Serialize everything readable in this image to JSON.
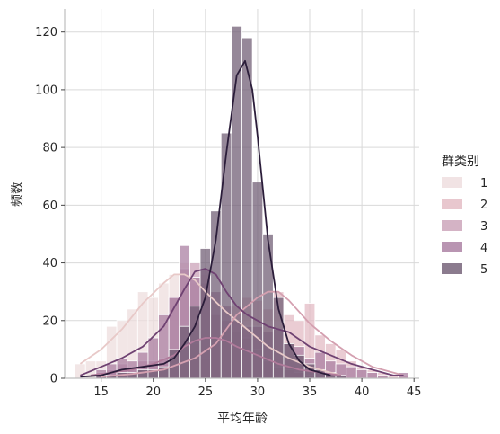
{
  "chart_data": {
    "type": "histogram",
    "xlabel": "平均年龄",
    "ylabel": "频数",
    "xlim": [
      11.5,
      45.5
    ],
    "ylim": [
      0,
      128
    ],
    "xticks": [
      15,
      20,
      25,
      30,
      35,
      40,
      45
    ],
    "yticks": [
      0,
      20,
      40,
      60,
      80,
      100,
      120
    ],
    "grid": true,
    "bin_width": 1,
    "legend": {
      "title": "群类别",
      "placement": "right"
    },
    "series": [
      {
        "name": "1",
        "color": "#eddcdd",
        "bins": [
          [
            13,
            5
          ],
          [
            14,
            6
          ],
          [
            15,
            6
          ],
          [
            16,
            18
          ],
          [
            17,
            20
          ],
          [
            18,
            24
          ],
          [
            19,
            30
          ],
          [
            20,
            28
          ],
          [
            21,
            33
          ],
          [
            22,
            36
          ],
          [
            23,
            40
          ],
          [
            24,
            33
          ],
          [
            25,
            36
          ],
          [
            26,
            22
          ],
          [
            27,
            18
          ],
          [
            28,
            20
          ],
          [
            29,
            15
          ],
          [
            30,
            18
          ],
          [
            31,
            12
          ],
          [
            32,
            7
          ],
          [
            33,
            6
          ],
          [
            34,
            5
          ],
          [
            35,
            3
          ],
          [
            36,
            2
          ],
          [
            37,
            2
          ],
          [
            38,
            1
          ]
        ],
        "kde": [
          [
            13,
            5
          ],
          [
            15,
            10
          ],
          [
            17,
            17
          ],
          [
            19,
            26
          ],
          [
            21,
            33
          ],
          [
            22,
            36
          ],
          [
            23,
            36
          ],
          [
            24,
            34
          ],
          [
            25,
            30
          ],
          [
            27,
            23
          ],
          [
            29,
            17
          ],
          [
            31,
            11
          ],
          [
            33,
            7
          ],
          [
            35,
            4
          ],
          [
            37,
            2
          ],
          [
            38,
            1
          ]
        ]
      },
      {
        "name": "2",
        "color": "#e2b9c2",
        "bins": [
          [
            15,
            1
          ],
          [
            16,
            2
          ],
          [
            17,
            3
          ],
          [
            18,
            2
          ],
          [
            19,
            2
          ],
          [
            20,
            3
          ],
          [
            21,
            5
          ],
          [
            22,
            8
          ],
          [
            23,
            5
          ],
          [
            24,
            12
          ],
          [
            25,
            7
          ],
          [
            26,
            14
          ],
          [
            27,
            18
          ],
          [
            28,
            25
          ],
          [
            29,
            28
          ],
          [
            30,
            27
          ],
          [
            31,
            24
          ],
          [
            32,
            30
          ],
          [
            33,
            22
          ],
          [
            34,
            20
          ],
          [
            35,
            26
          ],
          [
            36,
            15
          ],
          [
            37,
            12
          ],
          [
            38,
            10
          ],
          [
            39,
            6
          ],
          [
            40,
            4
          ],
          [
            41,
            3
          ],
          [
            42,
            2
          ],
          [
            43,
            1
          ],
          [
            44,
            1
          ]
        ],
        "kde": [
          [
            15,
            0.5
          ],
          [
            18,
            1.5
          ],
          [
            21,
            3
          ],
          [
            24,
            7
          ],
          [
            26,
            12
          ],
          [
            28,
            22
          ],
          [
            30,
            28
          ],
          [
            31,
            30
          ],
          [
            32,
            30
          ],
          [
            33,
            27
          ],
          [
            35,
            19
          ],
          [
            37,
            13
          ],
          [
            39,
            8
          ],
          [
            41,
            4
          ],
          [
            43,
            2
          ],
          [
            44,
            1
          ]
        ]
      },
      {
        "name": "3",
        "color": "#c9a0b6",
        "bins": [
          [
            15,
            2
          ],
          [
            16,
            3
          ],
          [
            17,
            5
          ],
          [
            18,
            4
          ],
          [
            19,
            6
          ],
          [
            20,
            6
          ],
          [
            21,
            7
          ],
          [
            22,
            28
          ],
          [
            23,
            38
          ],
          [
            24,
            40
          ],
          [
            25,
            33
          ],
          [
            26,
            22
          ],
          [
            27,
            20
          ],
          [
            28,
            16
          ],
          [
            29,
            14
          ],
          [
            30,
            10
          ],
          [
            31,
            6
          ],
          [
            32,
            4
          ],
          [
            33,
            3
          ],
          [
            34,
            2
          ],
          [
            35,
            1
          ]
        ],
        "kde": [
          [
            14,
            1
          ],
          [
            16,
            2
          ],
          [
            18,
            3
          ],
          [
            20,
            5
          ],
          [
            22,
            8
          ],
          [
            23,
            11
          ],
          [
            24,
            13
          ],
          [
            25,
            14
          ],
          [
            26,
            14
          ],
          [
            27,
            13
          ],
          [
            28,
            11
          ],
          [
            30,
            8
          ],
          [
            32,
            5
          ],
          [
            34,
            3
          ],
          [
            36,
            2
          ],
          [
            38,
            1
          ]
        ]
      },
      {
        "name": "4",
        "color": "#a87b9f",
        "bins": [
          [
            15,
            3
          ],
          [
            16,
            5
          ],
          [
            17,
            7
          ],
          [
            18,
            6
          ],
          [
            19,
            9
          ],
          [
            20,
            14
          ],
          [
            21,
            22
          ],
          [
            22,
            28
          ],
          [
            23,
            46
          ],
          [
            24,
            35
          ],
          [
            25,
            38
          ],
          [
            26,
            30
          ],
          [
            27,
            25
          ],
          [
            28,
            20
          ],
          [
            29,
            18
          ],
          [
            30,
            18
          ],
          [
            31,
            16
          ],
          [
            32,
            17
          ],
          [
            33,
            12
          ],
          [
            34,
            11
          ],
          [
            35,
            7
          ],
          [
            36,
            9
          ],
          [
            37,
            6
          ],
          [
            38,
            5
          ],
          [
            39,
            4
          ],
          [
            40,
            3
          ],
          [
            41,
            2
          ],
          [
            42,
            1
          ],
          [
            44,
            2
          ]
        ],
        "kde": [
          [
            13,
            1
          ],
          [
            15,
            4
          ],
          [
            17,
            7
          ],
          [
            19,
            11
          ],
          [
            21,
            18
          ],
          [
            23,
            31
          ],
          [
            24,
            37
          ],
          [
            25,
            38
          ],
          [
            26,
            36
          ],
          [
            27,
            30
          ],
          [
            28,
            25
          ],
          [
            29,
            22
          ],
          [
            30,
            20
          ],
          [
            31,
            18
          ],
          [
            33,
            16
          ],
          [
            35,
            11
          ],
          [
            37,
            8
          ],
          [
            39,
            5
          ],
          [
            41,
            3
          ],
          [
            43,
            1
          ],
          [
            44,
            1
          ]
        ]
      },
      {
        "name": "5",
        "color": "#6e5a72",
        "bins": [
          [
            15,
            1
          ],
          [
            16,
            1
          ],
          [
            17,
            2
          ],
          [
            18,
            2
          ],
          [
            19,
            3
          ],
          [
            20,
            3
          ],
          [
            21,
            4
          ],
          [
            22,
            10
          ],
          [
            23,
            18
          ],
          [
            24,
            25
          ],
          [
            25,
            45
          ],
          [
            26,
            58
          ],
          [
            27,
            85
          ],
          [
            28,
            122
          ],
          [
            29,
            118
          ],
          [
            30,
            68
          ],
          [
            31,
            50
          ],
          [
            32,
            28
          ],
          [
            33,
            12
          ],
          [
            34,
            8
          ],
          [
            35,
            5
          ],
          [
            36,
            3
          ],
          [
            37,
            2
          ],
          [
            38,
            1
          ]
        ],
        "kde": [
          [
            13,
            0.5
          ],
          [
            15,
            1
          ],
          [
            17,
            3
          ],
          [
            19,
            4
          ],
          [
            21,
            5
          ],
          [
            22,
            7
          ],
          [
            23,
            12
          ],
          [
            24,
            18
          ],
          [
            25,
            28
          ],
          [
            26,
            48
          ],
          [
            27,
            78
          ],
          [
            28,
            105
          ],
          [
            28.8,
            110
          ],
          [
            29.5,
            100
          ],
          [
            30,
            84
          ],
          [
            31,
            48
          ],
          [
            32,
            24
          ],
          [
            33,
            12
          ],
          [
            34,
            6
          ],
          [
            35,
            3
          ],
          [
            36,
            2
          ],
          [
            37,
            1
          ]
        ]
      }
    ]
  }
}
